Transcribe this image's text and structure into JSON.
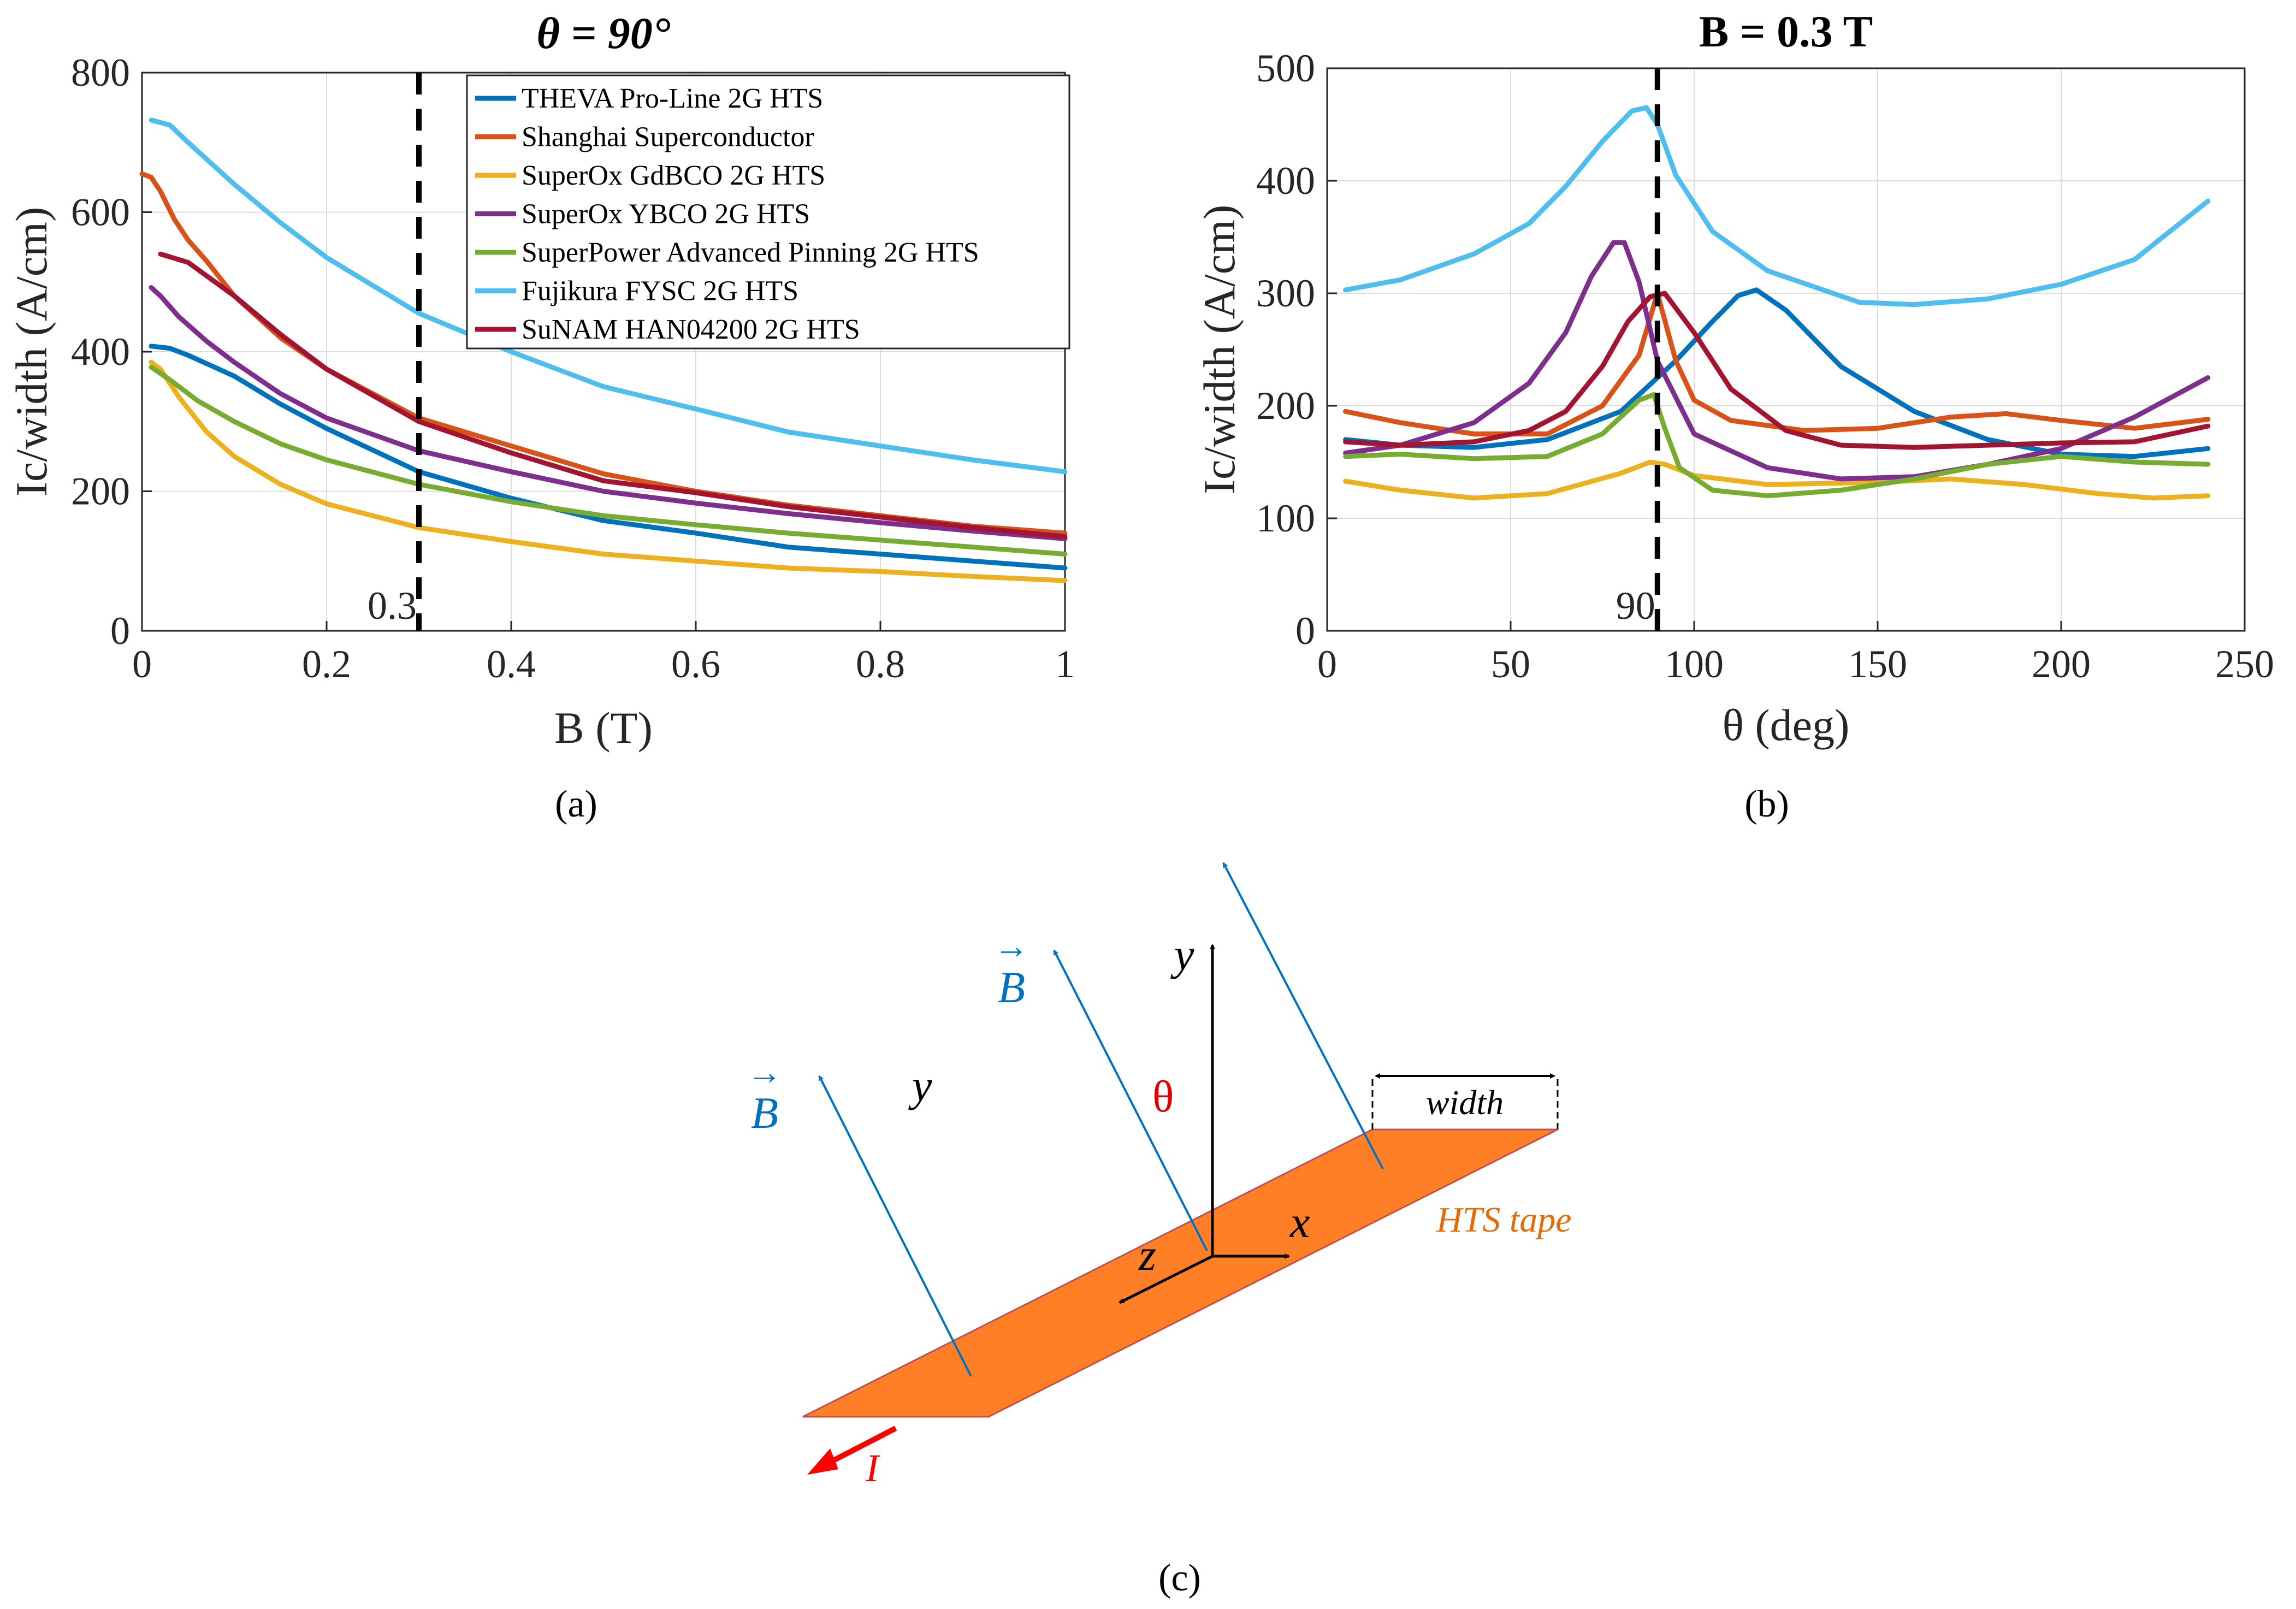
{
  "chart_data": [
    {
      "panel": "a",
      "type": "line",
      "title": "θ = 90°",
      "xlabel": "B (T)",
      "ylabel": "Ic/width (A/cm)",
      "xlim": [
        0,
        1
      ],
      "ylim": [
        0,
        800
      ],
      "xticks": [
        0,
        0.2,
        0.4,
        0.6,
        0.8,
        1
      ],
      "xtick_labels": [
        "0",
        "0.2",
        "0.4",
        "0.6",
        "0.8",
        "1"
      ],
      "yticks": [
        0,
        200,
        400,
        600,
        800
      ],
      "ytick_labels": [
        "0",
        "200",
        "400",
        "600",
        "800"
      ],
      "grid": true,
      "legend_position": "top-right",
      "vline": {
        "x": 0.3,
        "label": "0.3"
      },
      "series": [
        {
          "name": "THEVA Pro-Line 2G HTS",
          "color": "#0072BD",
          "x": [
            0.01,
            0.03,
            0.05,
            0.1,
            0.15,
            0.2,
            0.3,
            0.4,
            0.5,
            0.6,
            0.7,
            0.8,
            0.9,
            1.0
          ],
          "y": [
            408,
            405,
            395,
            365,
            325,
            290,
            228,
            190,
            158,
            140,
            120,
            110,
            100,
            90
          ]
        },
        {
          "name": "Shanghai Superconductor",
          "color": "#D95319",
          "x": [
            0.0,
            0.01,
            0.02,
            0.035,
            0.05,
            0.07,
            0.1,
            0.15,
            0.2,
            0.3,
            0.4,
            0.5,
            0.6,
            0.7,
            0.8,
            0.9,
            1.0
          ],
          "y": [
            655,
            650,
            630,
            590,
            560,
            530,
            480,
            420,
            375,
            305,
            265,
            225,
            200,
            180,
            165,
            150,
            140
          ]
        },
        {
          "name": "SuperOx GdBCO 2G HTS",
          "color": "#EDB120",
          "x": [
            0.01,
            0.02,
            0.04,
            0.07,
            0.1,
            0.15,
            0.2,
            0.3,
            0.4,
            0.5,
            0.6,
            0.7,
            0.8,
            0.9,
            1.0
          ],
          "y": [
            385,
            375,
            335,
            285,
            250,
            210,
            182,
            148,
            128,
            110,
            100,
            90,
            85,
            78,
            72
          ]
        },
        {
          "name": "SuperOx YBCO 2G HTS",
          "color": "#7E2F8E",
          "x": [
            0.01,
            0.02,
            0.04,
            0.07,
            0.1,
            0.15,
            0.2,
            0.3,
            0.4,
            0.5,
            0.6,
            0.7,
            0.8,
            0.9,
            1.0
          ],
          "y": [
            492,
            480,
            450,
            415,
            385,
            340,
            305,
            258,
            228,
            200,
            183,
            168,
            155,
            143,
            132
          ]
        },
        {
          "name": "SuperPower Advanced Pinning 2G HTS",
          "color": "#77AC30",
          "x": [
            0.01,
            0.03,
            0.06,
            0.1,
            0.15,
            0.2,
            0.3,
            0.4,
            0.5,
            0.6,
            0.7,
            0.8,
            0.9,
            1.0
          ],
          "y": [
            378,
            360,
            330,
            300,
            268,
            245,
            210,
            185,
            165,
            152,
            140,
            130,
            120,
            110
          ]
        },
        {
          "name": "Fujikura FYSC 2G HTS",
          "color": "#4DBEEE",
          "x": [
            0.01,
            0.03,
            0.05,
            0.1,
            0.15,
            0.2,
            0.3,
            0.4,
            0.5,
            0.6,
            0.7,
            0.8,
            0.9,
            1.0
          ],
          "y": [
            732,
            725,
            700,
            640,
            585,
            535,
            455,
            400,
            350,
            318,
            285,
            265,
            245,
            228
          ]
        },
        {
          "name": "SuNAM HAN04200 2G HTS",
          "color": "#A2142F",
          "x": [
            0.02,
            0.05,
            0.1,
            0.15,
            0.2,
            0.3,
            0.4,
            0.5,
            0.6,
            0.7,
            0.8,
            0.9,
            1.0
          ],
          "y": [
            540,
            528,
            480,
            425,
            375,
            300,
            255,
            215,
            198,
            178,
            163,
            148,
            135
          ]
        }
      ]
    },
    {
      "panel": "b",
      "type": "line",
      "title": "B = 0.3 T",
      "xlabel": "θ (deg)",
      "ylabel": "Ic/width (A/cm)",
      "xlim": [
        0,
        250
      ],
      "ylim": [
        0,
        500
      ],
      "xticks": [
        0,
        50,
        100,
        150,
        200,
        250
      ],
      "xtick_labels": [
        "0",
        "50",
        "100",
        "150",
        "200",
        "250"
      ],
      "yticks": [
        0,
        100,
        200,
        300,
        400,
        500
      ],
      "ytick_labels": [
        "0",
        "100",
        "200",
        "300",
        "400",
        "500"
      ],
      "grid": true,
      "vline": {
        "x": 90,
        "label": "90"
      },
      "series": [
        {
          "name": "THEVA Pro-Line 2G HTS",
          "color": "#0072BD",
          "x": [
            5,
            20,
            40,
            60,
            80,
            95,
            105,
            112,
            117,
            125,
            140,
            160,
            180,
            200,
            220,
            240
          ],
          "y": [
            170,
            165,
            163,
            170,
            195,
            240,
            275,
            298,
            303,
            285,
            235,
            195,
            170,
            157,
            155,
            162
          ]
        },
        {
          "name": "Shanghai Superconductor",
          "color": "#D95319",
          "x": [
            5,
            20,
            40,
            60,
            75,
            85,
            90,
            95,
            100,
            110,
            130,
            150,
            170,
            185,
            200,
            220,
            240
          ],
          "y": [
            195,
            185,
            175,
            175,
            200,
            245,
            300,
            240,
            205,
            187,
            178,
            180,
            190,
            193,
            187,
            180,
            188
          ]
        },
        {
          "name": "SuperOx GdBCO 2G HTS",
          "color": "#EDB120",
          "x": [
            5,
            20,
            40,
            60,
            80,
            88,
            92,
            100,
            120,
            150,
            170,
            190,
            210,
            225,
            240
          ],
          "y": [
            133,
            125,
            118,
            122,
            140,
            150,
            148,
            138,
            130,
            132,
            135,
            130,
            122,
            118,
            120
          ]
        },
        {
          "name": "SuperOx YBCO 2G HTS",
          "color": "#7E2F8E",
          "x": [
            5,
            20,
            40,
            55,
            65,
            72,
            78,
            81,
            85,
            90,
            100,
            120,
            140,
            160,
            180,
            200,
            220,
            240
          ],
          "y": [
            158,
            165,
            185,
            220,
            265,
            315,
            345,
            345,
            310,
            240,
            175,
            145,
            135,
            137,
            148,
            162,
            190,
            225
          ]
        },
        {
          "name": "SuperPower Advanced Pinning 2G HTS",
          "color": "#77AC30",
          "x": [
            5,
            20,
            40,
            60,
            75,
            85,
            89,
            92,
            96,
            105,
            120,
            140,
            160,
            180,
            200,
            220,
            240
          ],
          "y": [
            155,
            157,
            153,
            155,
            175,
            205,
            210,
            180,
            145,
            125,
            120,
            125,
            135,
            148,
            155,
            150,
            148
          ]
        },
        {
          "name": "Fujikura FYSC 2G HTS",
          "color": "#4DBEEE",
          "x": [
            5,
            20,
            40,
            55,
            65,
            75,
            83,
            87,
            90,
            95,
            105,
            120,
            145,
            160,
            180,
            200,
            220,
            240
          ],
          "y": [
            303,
            312,
            335,
            362,
            395,
            435,
            462,
            465,
            450,
            405,
            355,
            320,
            292,
            290,
            295,
            308,
            330,
            382
          ]
        },
        {
          "name": "SuNAM HAN04200 2G HTS",
          "color": "#A2142F",
          "x": [
            5,
            20,
            40,
            55,
            65,
            75,
            82,
            88,
            92,
            100,
            110,
            125,
            140,
            160,
            180,
            200,
            220,
            240
          ],
          "y": [
            168,
            165,
            168,
            178,
            195,
            235,
            275,
            297,
            300,
            265,
            215,
            178,
            165,
            163,
            165,
            167,
            168,
            182
          ]
        }
      ]
    }
  ],
  "captions": {
    "a": "(a)",
    "b": "(b)",
    "c": "(c)"
  },
  "diagram": {
    "b_label": "B",
    "b_vector_arrow": "→",
    "y_axis_label": "y",
    "y_side_label": "y",
    "theta_label": "θ",
    "x_axis_label": "x",
    "z_axis_label": "z",
    "width_label": "width",
    "tape_label": "HTS tape",
    "current_label": "I",
    "colors": {
      "tape": "#FF7F27",
      "field": "#0070C0",
      "theta": "#E00000",
      "current": "#FF0000",
      "tape_label": "#E36C09"
    }
  }
}
